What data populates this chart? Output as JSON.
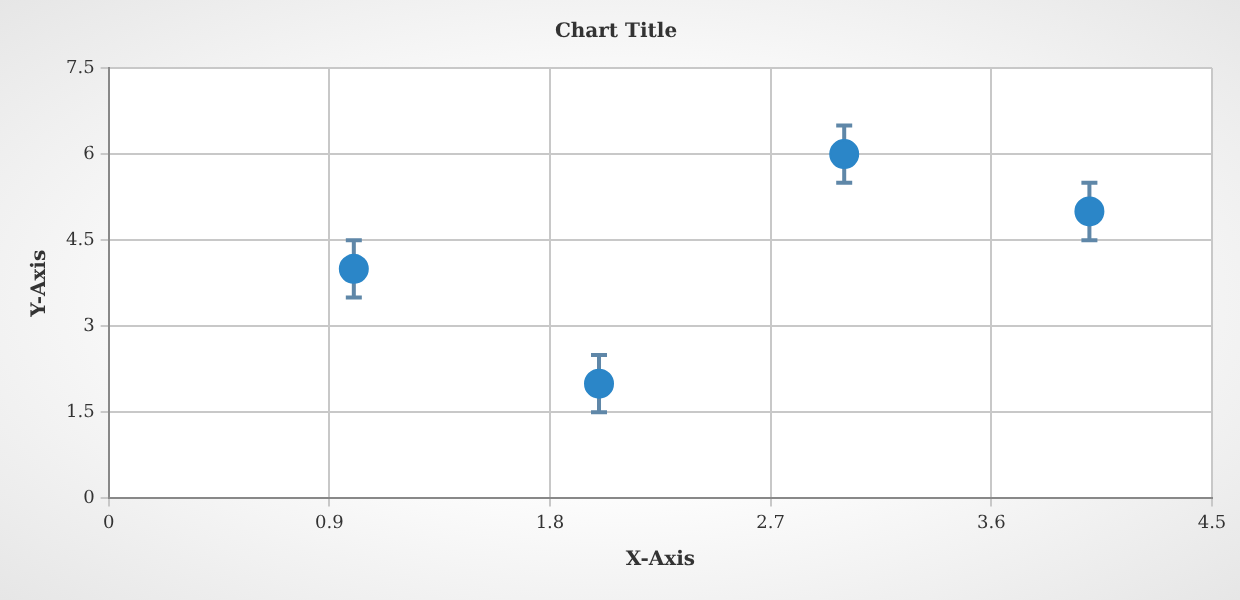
{
  "chart_data": {
    "type": "scatter",
    "title": "Chart Title",
    "xlabel": "X-Axis",
    "ylabel": "Y-Axis",
    "x": [
      1,
      2,
      3,
      4
    ],
    "series": [
      {
        "color": "#2b86c8",
        "values": [
          4,
          2,
          6,
          5
        ],
        "errors": [
          0.5,
          0.5,
          0.5,
          0.5
        ]
      }
    ],
    "xlim": [
      0,
      4.5
    ],
    "xticks": [
      0,
      0.9,
      1.8,
      2.7,
      3.6,
      4.5
    ],
    "ylim": [
      0,
      7.5
    ],
    "yticks": [
      0,
      1.5,
      3,
      4.5,
      6,
      7.5
    ],
    "grid": true,
    "legend": false,
    "marker": "circle"
  }
}
